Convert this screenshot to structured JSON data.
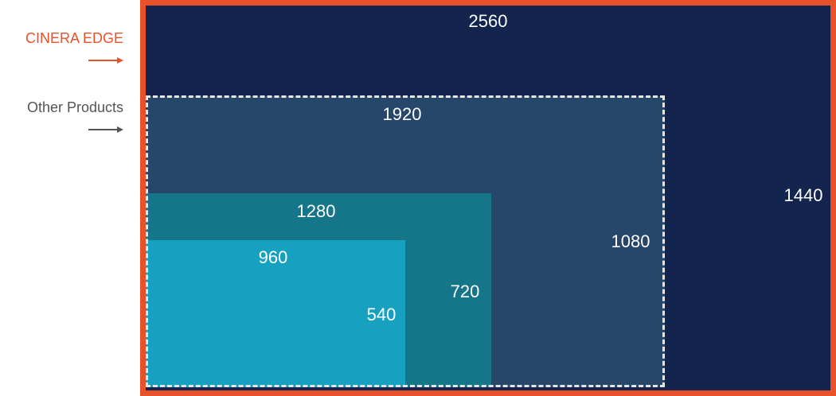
{
  "legend": {
    "cinera_label": "CINERA EDGE",
    "other_label": "Other Products"
  },
  "colors": {
    "cinera_accent": "#e8522a",
    "other_accent": "#555555",
    "res_2560x1440": "#13254f",
    "res_1920x1080": "#26466a",
    "res_1280x720": "#157689",
    "res_960x540": "#16a1c1",
    "dashed_border": "#e6e6e6"
  },
  "resolutions": [
    {
      "width": "2560",
      "height": "1440",
      "product": "CINERA EDGE"
    },
    {
      "width": "1920",
      "height": "1080",
      "product": "Other Products"
    },
    {
      "width": "1280",
      "height": "720"
    },
    {
      "width": "960",
      "height": "540"
    }
  ]
}
